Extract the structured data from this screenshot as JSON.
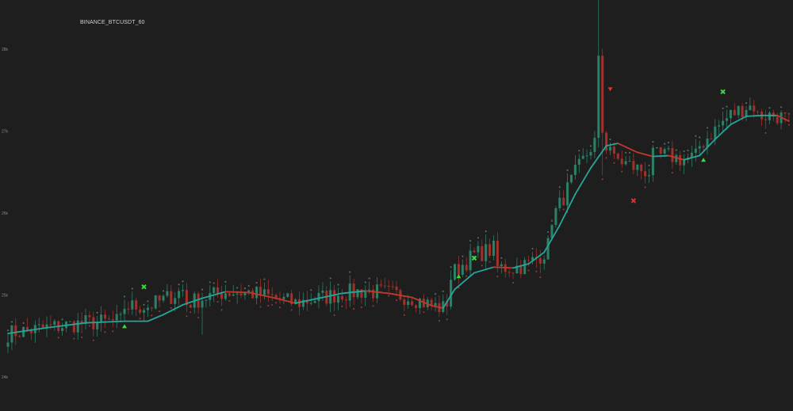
{
  "title": "BINANCE_BTCUSDT_60",
  "colors": {
    "background": "#1e1e1e",
    "bull": "#2e8b6e",
    "bear": "#b0322e",
    "ma_up": "#26a69a",
    "ma_down": "#c0392b",
    "signal_buy": "#3ddc3d",
    "signal_sell": "#e03030"
  },
  "chart_data": {
    "type": "candlestick",
    "y_ticks": [
      "24k",
      "25k",
      "26k",
      "27k",
      "28k"
    ],
    "ylim": [
      23.9,
      28.5
    ],
    "ma_points": [
      [
        0,
        24.53
      ],
      [
        10,
        24.6
      ],
      [
        20,
        24.66
      ],
      [
        30,
        24.68
      ],
      [
        36,
        24.68
      ],
      [
        40,
        24.76
      ],
      [
        45,
        24.88
      ],
      [
        50,
        24.96
      ],
      [
        56,
        25.04
      ],
      [
        62,
        25.03
      ],
      [
        68,
        24.97
      ],
      [
        74,
        24.9
      ],
      [
        80,
        24.96
      ],
      [
        86,
        25.02
      ],
      [
        92,
        25.05
      ],
      [
        98,
        25.02
      ],
      [
        104,
        24.97
      ],
      [
        109,
        24.87
      ],
      [
        112,
        24.84
      ],
      [
        115,
        25.07
      ],
      [
        120,
        25.27
      ],
      [
        125,
        25.34
      ],
      [
        130,
        25.33
      ],
      [
        134,
        25.38
      ],
      [
        138,
        25.52
      ],
      [
        142,
        25.85
      ],
      [
        146,
        26.23
      ],
      [
        150,
        26.55
      ],
      [
        154,
        26.82
      ],
      [
        157,
        26.85
      ],
      [
        162,
        26.74
      ],
      [
        166,
        26.69
      ],
      [
        170,
        26.7
      ],
      [
        174,
        26.65
      ],
      [
        178,
        26.7
      ],
      [
        182,
        26.9
      ],
      [
        186,
        27.08
      ],
      [
        190,
        27.18
      ],
      [
        194,
        27.19
      ],
      [
        198,
        27.19
      ],
      [
        201,
        27.12
      ]
    ],
    "signals": [
      {
        "type": "buy-triangle",
        "i": 30,
        "v": 24.62
      },
      {
        "type": "buy-cross",
        "i": 35,
        "v": 25.1
      },
      {
        "type": "buy-triangle",
        "i": 116,
        "v": 25.23
      },
      {
        "type": "buy-cross",
        "i": 120,
        "v": 25.45
      },
      {
        "type": "sell-triangle",
        "i": 155,
        "v": 27.51
      },
      {
        "type": "sell-cross",
        "i": 161,
        "v": 26.15
      },
      {
        "type": "buy-triangle",
        "i": 179,
        "v": 26.65
      },
      {
        "type": "buy-cross",
        "i": 184,
        "v": 27.48
      }
    ]
  }
}
